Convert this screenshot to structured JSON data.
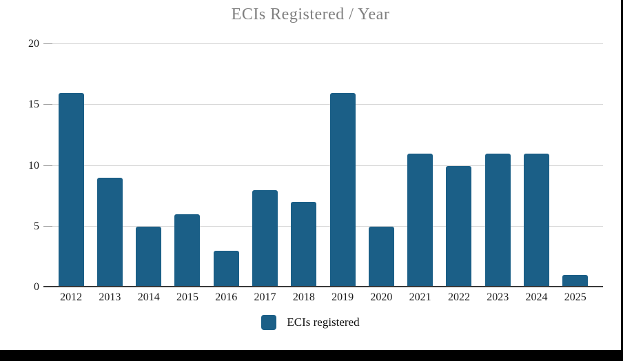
{
  "title": "ECIs Registered / Year",
  "legend": {
    "label": "ECIs registered"
  },
  "colors": {
    "bar": "#1b5f87",
    "gridline": "#d6d6d6",
    "tick": "#9e9e9e",
    "axis": "#3a3a3a",
    "title_text": "#7f7f7f",
    "label_text": "#1a1a1a",
    "band": "#000000",
    "background": "#ffffff"
  },
  "chart_data": {
    "type": "bar",
    "title": "ECIs Registered / Year",
    "categories": [
      "2012",
      "2013",
      "2014",
      "2015",
      "2016",
      "2017",
      "2018",
      "2019",
      "2020",
      "2021",
      "2022",
      "2023",
      "2024",
      "2025"
    ],
    "values": [
      16,
      9,
      5,
      6,
      3,
      8,
      7,
      16,
      5,
      11,
      10,
      11,
      11,
      1
    ],
    "series_name": "ECIs registered",
    "xlabel": "",
    "ylabel": "",
    "ylim": [
      0,
      20
    ],
    "yticks": [
      0,
      5,
      10,
      15,
      20
    ],
    "grid": "horizontal",
    "legend_position": "bottom"
  }
}
